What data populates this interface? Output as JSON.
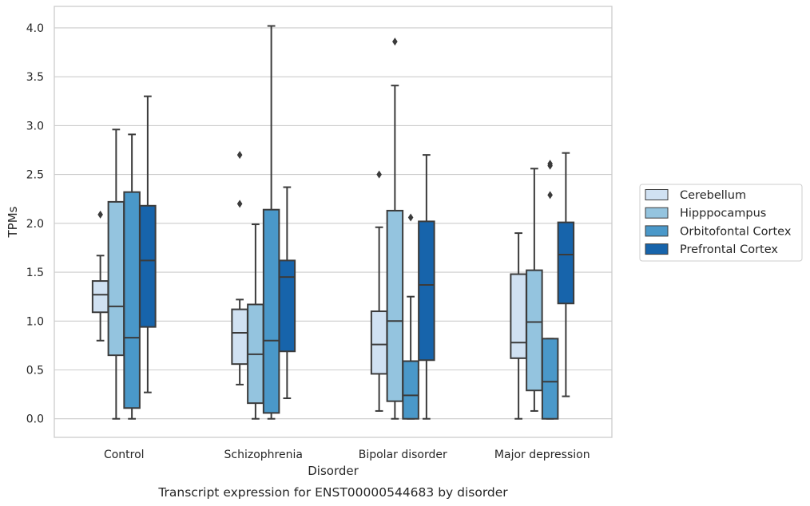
{
  "caption": "Transcript expression for ENST00000544683 by disorder",
  "chart_data": {
    "type": "box",
    "xlabel": "Disorder",
    "ylabel": "TPMs",
    "ylim": [
      -0.19,
      4.22
    ],
    "yticks": [
      "0.0",
      "0.5",
      "1.0",
      "1.5",
      "2.0",
      "2.5",
      "3.0",
      "3.5",
      "4.0"
    ],
    "grid": "horizontal",
    "legend_position": "right",
    "categories": [
      "Control",
      "Schizophrenia",
      "Bipolar disorder",
      "Major depression"
    ],
    "series": [
      {
        "name": "Cerebellum",
        "color": "#d0e1f2",
        "boxes": [
          {
            "whislo": 0.8,
            "q1": 1.09,
            "med": 1.27,
            "q3": 1.41,
            "whishi": 1.67,
            "fliers": [
              2.09
            ]
          },
          {
            "whislo": 0.35,
            "q1": 0.56,
            "med": 0.88,
            "q3": 1.12,
            "whishi": 1.22,
            "fliers": [
              2.2,
              2.7
            ]
          },
          {
            "whislo": 0.08,
            "q1": 0.46,
            "med": 0.76,
            "q3": 1.1,
            "whishi": 1.96,
            "fliers": [
              2.5
            ]
          },
          {
            "whislo": 0.0,
            "q1": 0.62,
            "med": 0.78,
            "q3": 1.48,
            "whishi": 1.9,
            "fliers": []
          }
        ]
      },
      {
        "name": "Hipppocampus",
        "color": "#94c4df",
        "boxes": [
          {
            "whislo": 0.0,
            "q1": 0.65,
            "med": 1.15,
            "q3": 2.22,
            "whishi": 2.96,
            "fliers": []
          },
          {
            "whislo": 0.0,
            "q1": 0.16,
            "med": 0.66,
            "q3": 1.17,
            "whishi": 1.99,
            "fliers": []
          },
          {
            "whislo": 0.0,
            "q1": 0.18,
            "med": 1.0,
            "q3": 2.13,
            "whishi": 3.41,
            "fliers": [
              3.86
            ]
          },
          {
            "whislo": 0.08,
            "q1": 0.29,
            "med": 0.99,
            "q3": 1.52,
            "whishi": 2.56,
            "fliers": []
          }
        ]
      },
      {
        "name": "Orbitofontal Cortex",
        "color": "#4a98c9",
        "boxes": [
          {
            "whislo": 0.0,
            "q1": 0.11,
            "med": 0.83,
            "q3": 2.32,
            "whishi": 2.91,
            "fliers": []
          },
          {
            "whislo": 0.0,
            "q1": 0.06,
            "med": 0.8,
            "q3": 2.14,
            "whishi": 4.02,
            "fliers": []
          },
          {
            "whislo": 0.0,
            "q1": 0.0,
            "med": 0.24,
            "q3": 0.59,
            "whishi": 1.25,
            "fliers": [
              2.06
            ]
          },
          {
            "whislo": 0.0,
            "q1": 0.0,
            "med": 0.38,
            "q3": 0.82,
            "whishi": 0.82,
            "fliers": [
              2.29,
              2.59,
              2.61
            ]
          }
        ]
      },
      {
        "name": "Prefrontal Cortex",
        "color": "#1764ab",
        "boxes": [
          {
            "whislo": 0.27,
            "q1": 0.94,
            "med": 1.62,
            "q3": 2.18,
            "whishi": 3.3,
            "fliers": []
          },
          {
            "whislo": 0.21,
            "q1": 0.69,
            "med": 1.45,
            "q3": 1.62,
            "whishi": 2.37,
            "fliers": []
          },
          {
            "whislo": 0.0,
            "q1": 0.6,
            "med": 1.37,
            "q3": 2.02,
            "whishi": 2.7,
            "fliers": []
          },
          {
            "whislo": 0.23,
            "q1": 1.18,
            "med": 1.68,
            "q3": 2.01,
            "whishi": 2.72,
            "fliers": []
          }
        ]
      }
    ]
  }
}
